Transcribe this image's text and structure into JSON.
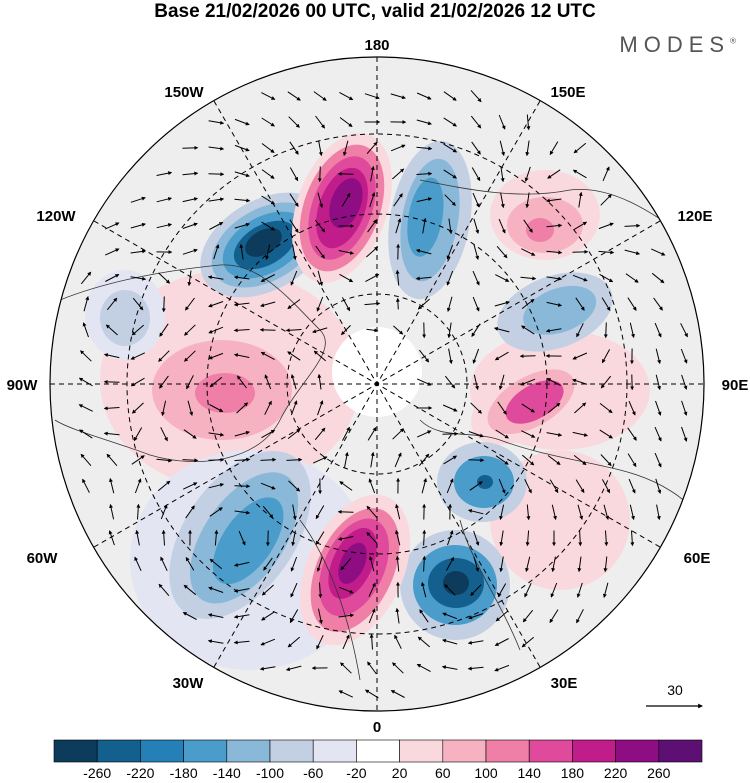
{
  "title": "Base 21/02/2026 00 UTC, valid 21/02/2026 12 UTC",
  "brand": "MODES",
  "brand_mark": "®",
  "longitude_labels": {
    "top": "180",
    "bottom": "0",
    "left": "90W",
    "right": "90E",
    "upper_left_1": "150W",
    "upper_left_2": "120W",
    "upper_right_1": "150E",
    "upper_right_2": "120E",
    "lower_left_1": "60W",
    "lower_left_2": "30W",
    "lower_right_1": "60E",
    "lower_right_2": "30E"
  },
  "vector_reference": {
    "label": "30"
  },
  "colorbar": {
    "labels": [
      "-260",
      "-220",
      "-180",
      "-140",
      "-100",
      "-60",
      "-20",
      "20",
      "60",
      "100",
      "140",
      "180",
      "220",
      "260"
    ],
    "colors": [
      "#0d3b5c",
      "#13608f",
      "#2580b8",
      "#4a9ccb",
      "#8ab8d9",
      "#c3cfe3",
      "#e4e5f2",
      "#ffffff",
      "#fad9de",
      "#f6b2c1",
      "#f07fa8",
      "#e04a9c",
      "#c01d8b",
      "#8e0d83",
      "#5e0f73"
    ]
  },
  "anomalies": [
    {
      "name": "blue-low-west-pacific",
      "color": "#0d3b5c"
    },
    {
      "name": "magenta-high-bering",
      "color": "#8e0d83"
    },
    {
      "name": "blue-low-east-siberia",
      "color": "#4a9ccb"
    },
    {
      "name": "pink-high-east-asia",
      "color": "#f07fa8"
    },
    {
      "name": "blue-low-central-asia",
      "color": "#8ab8d9"
    },
    {
      "name": "magenta-high-ural",
      "color": "#c01d8b"
    },
    {
      "name": "blue-low-scandinavia",
      "color": "#2580b8"
    },
    {
      "name": "blue-low-europe",
      "color": "#13608f"
    },
    {
      "name": "magenta-high-north-atlantic",
      "color": "#8e0d83"
    },
    {
      "name": "blue-low-west-atlantic",
      "color": "#2580b8"
    },
    {
      "name": "pink-high-north-america",
      "color": "#f07fa8"
    },
    {
      "name": "blue-low-west-canada",
      "color": "#c3cfe3"
    }
  ]
}
